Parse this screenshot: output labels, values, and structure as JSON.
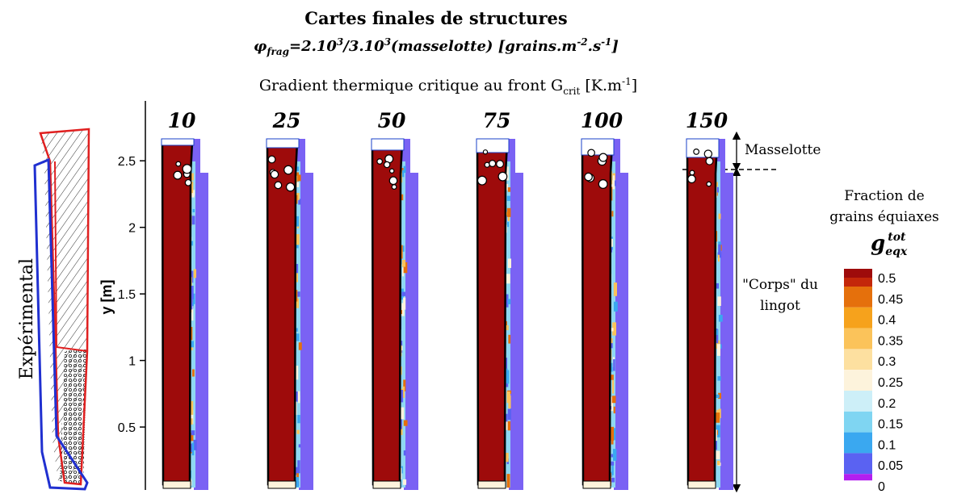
{
  "title": "Cartes finales de structures",
  "subtitle": [
    "φ",
    "frag",
    "=2.10",
    "3",
    "/3.10",
    "3",
    "(masselotte) [grains.m",
    "-2",
    ".s",
    "-1",
    "]"
  ],
  "gradient_label": [
    "Gradient thermique critique au front G",
    "crit",
    " [K.m",
    "-1",
    "]"
  ],
  "panels": [
    10,
    25,
    50,
    75,
    100,
    150
  ],
  "y_axis": {
    "label": "y [m]",
    "ylim": [
      0,
      2.95
    ],
    "yticks": [
      0.5,
      1,
      1.5,
      2,
      2.5
    ]
  },
  "experimental_label": "Expérimental",
  "zones": {
    "masselotte": "Masselotte",
    "body": [
      "\"Corps\" du",
      "lingot"
    ]
  },
  "legend": {
    "title": [
      "Fraction de",
      "grains équiaxes"
    ],
    "symbol": [
      "g",
      "eqx",
      "tot"
    ],
    "levels": [
      {
        "value": 0.5,
        "color": "#c4270a"
      },
      {
        "value": 0.45,
        "color": "#e5700c"
      },
      {
        "value": 0.4,
        "color": "#f6a21c"
      },
      {
        "value": 0.35,
        "color": "#fbc35a"
      },
      {
        "value": 0.3,
        "color": "#fde0a0"
      },
      {
        "value": 0.25,
        "color": "#fdf3dc"
      },
      {
        "value": 0.2,
        "color": "#cdeff8"
      },
      {
        "value": 0.15,
        "color": "#7fd5f2"
      },
      {
        "value": 0.1,
        "color": "#3aa8f0"
      },
      {
        "value": 0.05,
        "color": "#5a62f2"
      },
      {
        "value": 0,
        "color": "#b21ef0"
      }
    ]
  }
}
